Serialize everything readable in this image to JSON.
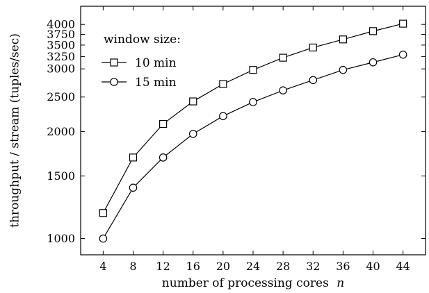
{
  "chart_data": {
    "type": "line",
    "xlabel": "number of processing cores",
    "xlabel_var": "n",
    "ylabel": "throughput / stream (tuples/sec)",
    "x": [
      4,
      8,
      12,
      16,
      20,
      24,
      28,
      32,
      36,
      40,
      44
    ],
    "x_ticks": [
      4,
      8,
      12,
      16,
      20,
      24,
      28,
      32,
      36,
      40,
      44
    ],
    "y_ticks": [
      1000,
      1500,
      2000,
      2500,
      3000,
      3250,
      3500,
      3750,
      4000
    ],
    "y_scale": "log",
    "xlim": [
      1,
      47
    ],
    "ylim": [
      900,
      4500
    ],
    "grid": false,
    "legend": {
      "title": "window size:",
      "placement": "top-left"
    },
    "series": [
      {
        "name": "10 min",
        "marker": "square",
        "values": [
          1180,
          1690,
          2100,
          2430,
          2720,
          2980,
          3225,
          3445,
          3630,
          3830,
          4020
        ]
      },
      {
        "name": "15 min",
        "marker": "circle",
        "values": [
          1000,
          1390,
          1690,
          1970,
          2210,
          2420,
          2610,
          2790,
          2980,
          3130,
          3290
        ]
      }
    ]
  }
}
